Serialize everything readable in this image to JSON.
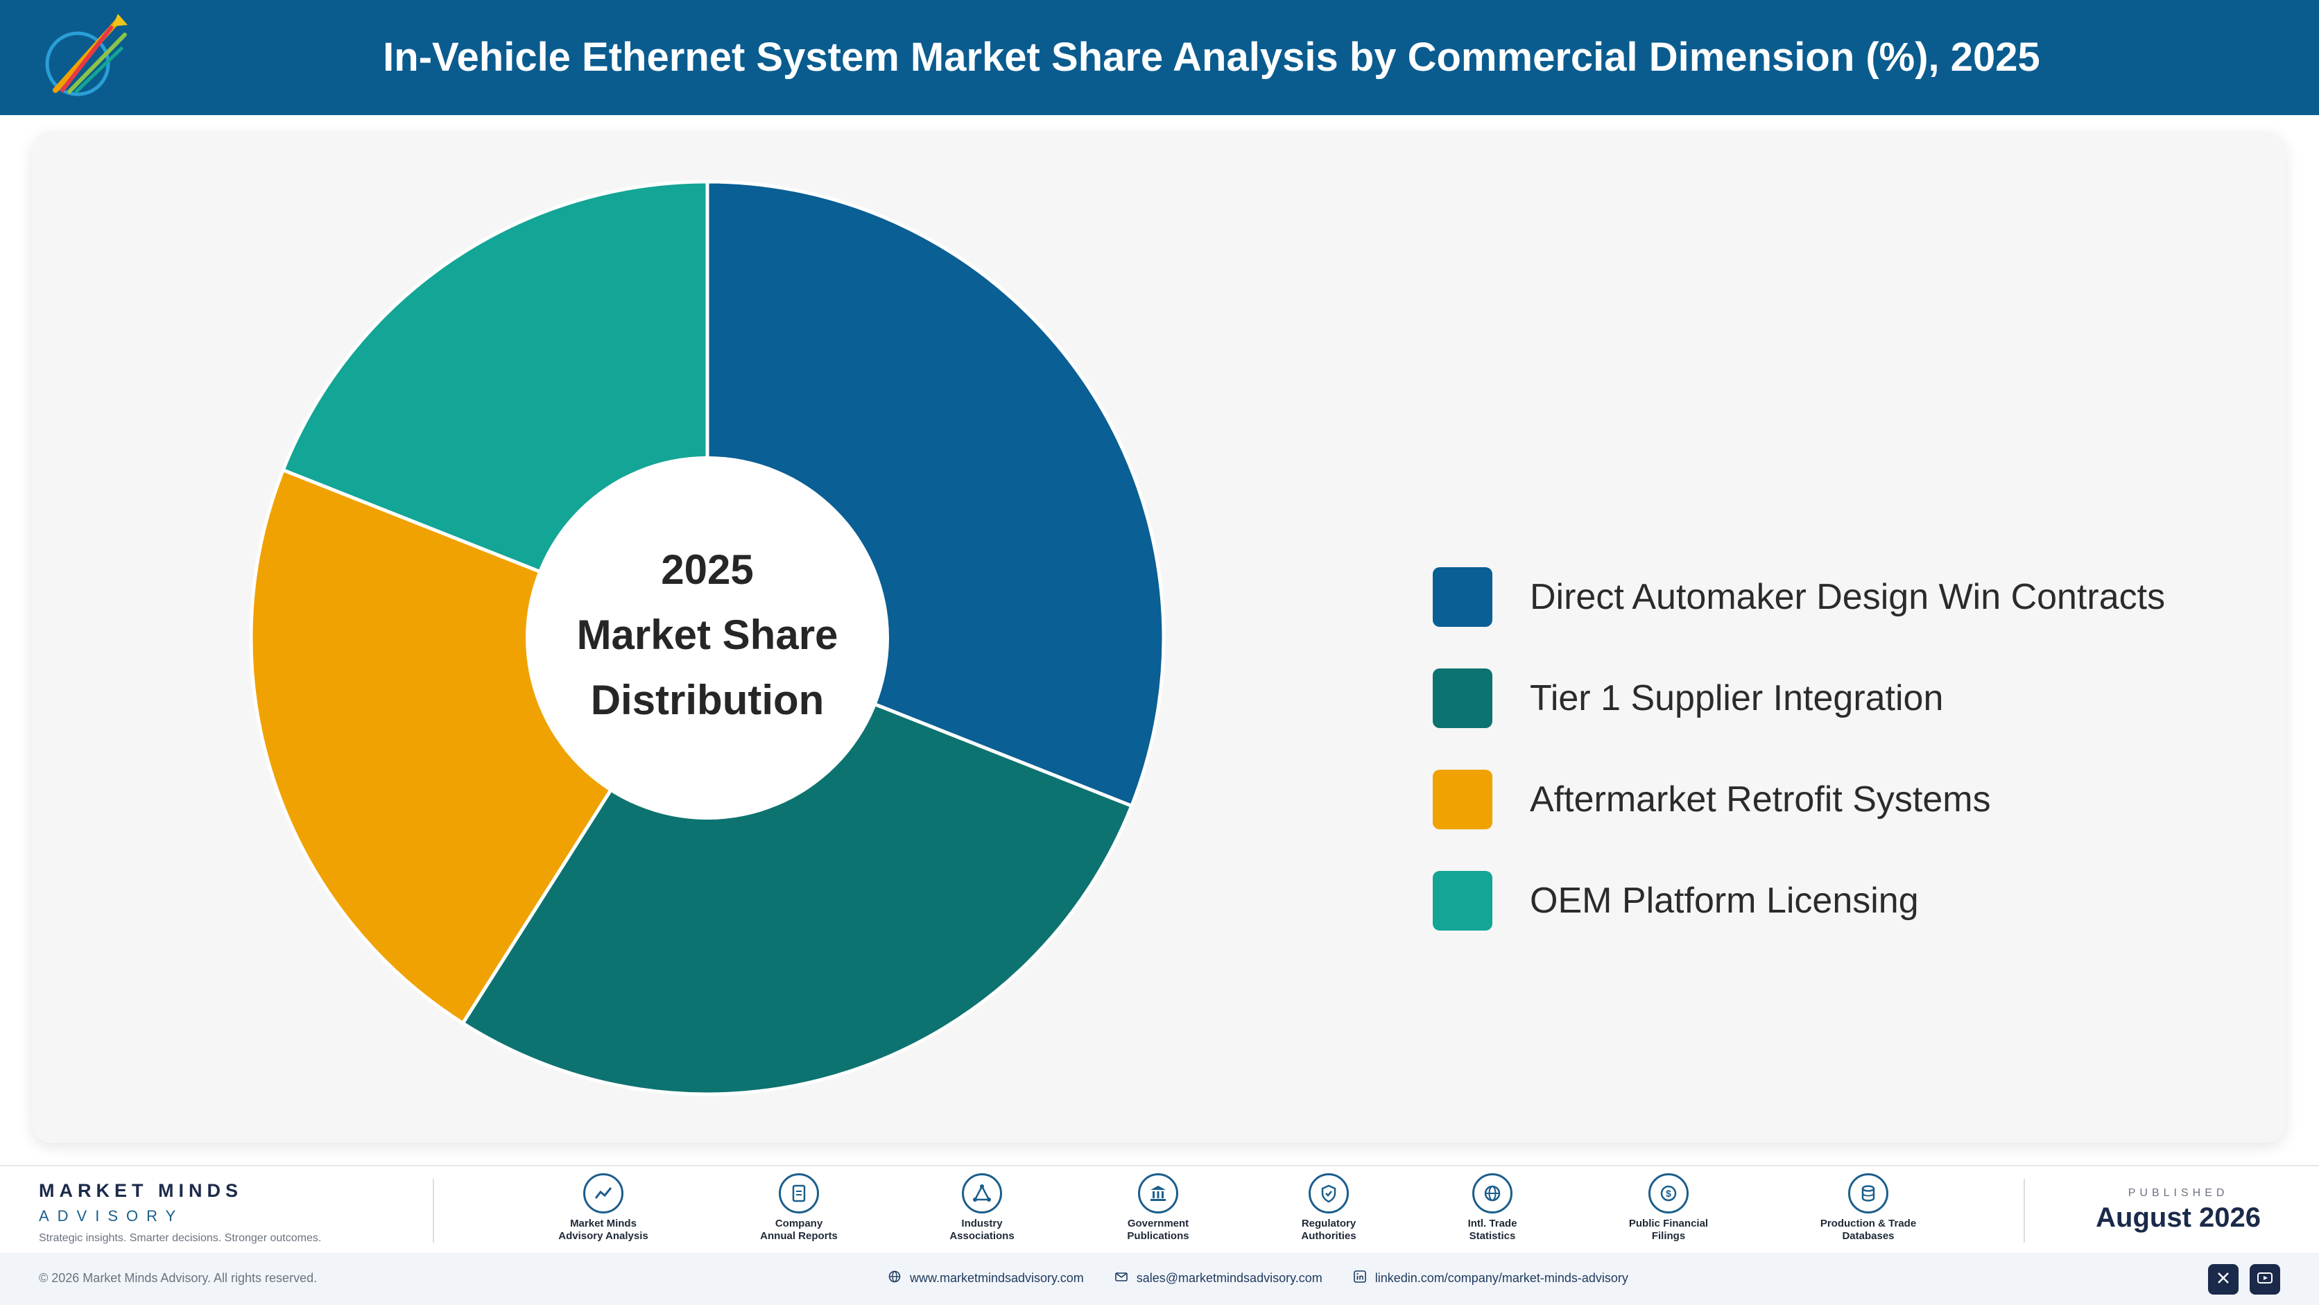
{
  "header": {
    "title": "In-Vehicle Ethernet System Market Share Analysis by Commercial Dimension (%), 2025"
  },
  "chart_data": {
    "type": "pie",
    "title": "In-Vehicle Ethernet System Market Share Analysis by Commercial Dimension (%), 2025",
    "center_label": [
      "2025",
      "Market Share",
      "Distribution"
    ],
    "categories": [
      "Direct Automaker Design Win Contracts",
      "Tier 1 Supplier Integration",
      "Aftermarket Retrofit Systems",
      "OEM Platform Licensing"
    ],
    "values": [
      31,
      28,
      22,
      19
    ],
    "colors": [
      "#0a5f94",
      "#0d7370",
      "#f0a202",
      "#13a595"
    ],
    "legend_position": "right",
    "donut": true
  },
  "footer": {
    "brand_name": "MARKET MINDS",
    "brand_sub": "ADVISORY",
    "tagline": "Strategic insights. Smarter decisions. Stronger outcomes.",
    "sources": [
      {
        "label": "Market Minds\nAdvisory Analysis",
        "icon": "chart-line-icon"
      },
      {
        "label": "Company\nAnnual Reports",
        "icon": "document-icon"
      },
      {
        "label": "Industry\nAssociations",
        "icon": "network-icon"
      },
      {
        "label": "Government\nPublications",
        "icon": "government-building-icon"
      },
      {
        "label": "Regulatory\nAuthorities",
        "icon": "shield-check-icon"
      },
      {
        "label": "Intl. Trade\nStatistics",
        "icon": "globe-icon"
      },
      {
        "label": "Public Financial\nFilings",
        "icon": "dollar-coin-icon"
      },
      {
        "label": "Production & Trade\nDatabases",
        "icon": "database-icon"
      }
    ],
    "published_label": "PUBLISHED",
    "published_date": "August 2026"
  },
  "bottom": {
    "copyright": "© 2026 Market Minds Advisory. All rights reserved.",
    "website": "www.marketmindsadvisory.com",
    "email": "sales@marketmindsadvisory.com",
    "linkedin": "linkedin.com/company/market-minds-advisory"
  }
}
